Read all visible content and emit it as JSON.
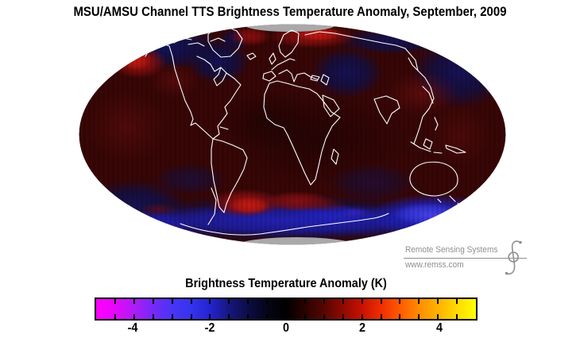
{
  "title": "MSU/AMSU Channel TTS Brightness Temperature Anomaly, September, 2009",
  "branding": {
    "name": "Remote Sensing Systems",
    "url": "www.remss.com"
  },
  "colorbar": {
    "title": "Brightness Temperature Anomaly (K)",
    "units": "K",
    "min": -5,
    "max": 5,
    "minor_tick_step": 0.5,
    "tick_values": [
      -4,
      -2,
      0,
      2,
      4
    ],
    "tick_labels": [
      "-4",
      "-2",
      "0",
      "2",
      "4"
    ],
    "gradient_stops": [
      {
        "at": 0,
        "color": "#ff00ff"
      },
      {
        "at": 5,
        "color": "#e607fb"
      },
      {
        "at": 10,
        "color": "#ad1cf6"
      },
      {
        "at": 15,
        "color": "#7529f8"
      },
      {
        "at": 20,
        "color": "#4a34f4"
      },
      {
        "at": 25,
        "color": "#3434ee"
      },
      {
        "at": 30,
        "color": "#2424cf"
      },
      {
        "at": 35,
        "color": "#16167e"
      },
      {
        "at": 40,
        "color": "#0c0c46"
      },
      {
        "at": 45,
        "color": "#050518"
      },
      {
        "at": 50,
        "color": "#000000"
      },
      {
        "at": 55,
        "color": "#2a0301"
      },
      {
        "at": 60,
        "color": "#550601"
      },
      {
        "at": 65,
        "color": "#8f0a01"
      },
      {
        "at": 70,
        "color": "#c81102"
      },
      {
        "at": 75,
        "color": "#ef2e00"
      },
      {
        "at": 80,
        "color": "#ff5a00"
      },
      {
        "at": 85,
        "color": "#ff8c00"
      },
      {
        "at": 90,
        "color": "#ffb200"
      },
      {
        "at": 95,
        "color": "#ffd900"
      },
      {
        "at": 100,
        "color": "#ffff00"
      }
    ]
  },
  "chart_data": {
    "type": "heatmap",
    "title": "MSU/AMSU Channel TTS Brightness Temperature Anomaly, September, 2009",
    "variable": "Brightness Temperature Anomaly",
    "channel": "TTS",
    "instrument": "MSU/AMSU",
    "period": "September, 2009",
    "units": "K",
    "projection": "mollweide-elliptical",
    "colorbar_range": [
      -5,
      5
    ],
    "colorbar_ticks": [
      -4,
      -2,
      0,
      2,
      4
    ],
    "coastline_color": "#ffffff",
    "no_data_color": "#a9a9a9",
    "no_data_regions": [
      "north polar cap",
      "south polar cap (Antarctic interior)"
    ],
    "notable_anomalies": [
      {
        "region": "Gulf of Alaska / Alaska",
        "anomaly_k": 1.5
      },
      {
        "region": "Scandinavia / Barents Sea (Arctic)",
        "anomaly_k": 2.0
      },
      {
        "region": "Hudson Bay / northeastern Canada",
        "anomaly_k": -1.0
      },
      {
        "region": "Central Asia",
        "anomaly_k": -1.0
      },
      {
        "region": "Northern Siberia rim",
        "anomaly_k": -1.5
      },
      {
        "region": "Northeast Asia / North Pacific",
        "anomaly_k": 1.0
      },
      {
        "region": "Southern Ocean south of South America",
        "anomaly_k": 2.0
      },
      {
        "region": "Southern Ocean, Atlantic/Indian sector mottling",
        "anomaly_k": 1.5
      },
      {
        "region": "Southern Ocean southeast of New Zealand (Ross Sea sector)",
        "anomaly_k": -2.5
      },
      {
        "region": "Antarctic coastal band",
        "anomaly_k": -2.0
      },
      {
        "region": "Global background (tropics and midlatitudes)",
        "anomaly_k": 0.5
      }
    ]
  }
}
